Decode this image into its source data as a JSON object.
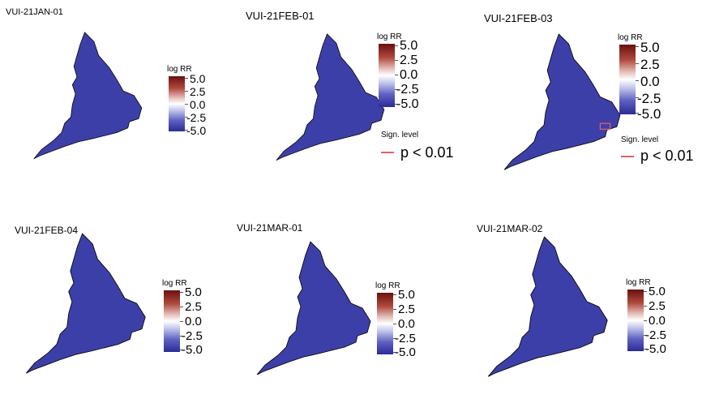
{
  "panels": [
    {
      "title": "VUI-21JAN-01",
      "legend_title": "log RR",
      "legend_ticks": [
        "5.0",
        "2.5",
        "0.0",
        "-2.5",
        "-5.0"
      ]
    },
    {
      "title": "VUI-21FEB-01",
      "legend_title": "log RR",
      "legend_ticks": [
        "5.0",
        "2.5",
        "0.0",
        "-2.5",
        "-5.0"
      ],
      "significance": {
        "title": "Sign. level",
        "label": "p < 0.01"
      }
    },
    {
      "title": "VUI-21FEB-03",
      "legend_title": "log RR",
      "legend_ticks": [
        "5.0",
        "2.5",
        "0.0",
        "-2.5",
        "-5.0"
      ],
      "significance": {
        "title": "Sign. level",
        "label": "p < 0.01"
      }
    },
    {
      "title": "VUI-21FEB-04",
      "legend_title": "log RR",
      "legend_ticks": [
        "5.0",
        "2.5",
        "0.0",
        "-2.5",
        "-5.0"
      ]
    },
    {
      "title": "VUI-21MAR-01",
      "legend_title": "log RR",
      "legend_ticks": [
        "5.0",
        "2.5",
        "0.0",
        "-2.5",
        "-5.0"
      ]
    },
    {
      "title": "VUI-21MAR-02",
      "legend_title": "log RR",
      "legend_ticks": [
        "5.0",
        "2.5",
        "0.0",
        "-2.5",
        "-5.0"
      ]
    }
  ],
  "colors": {
    "low": "#2c2a96",
    "mid": "#ffffff",
    "high": "#6b0f0f",
    "significance_outline": "#e4606c"
  },
  "colorbar_range": [
    -5.0,
    5.0
  ]
}
